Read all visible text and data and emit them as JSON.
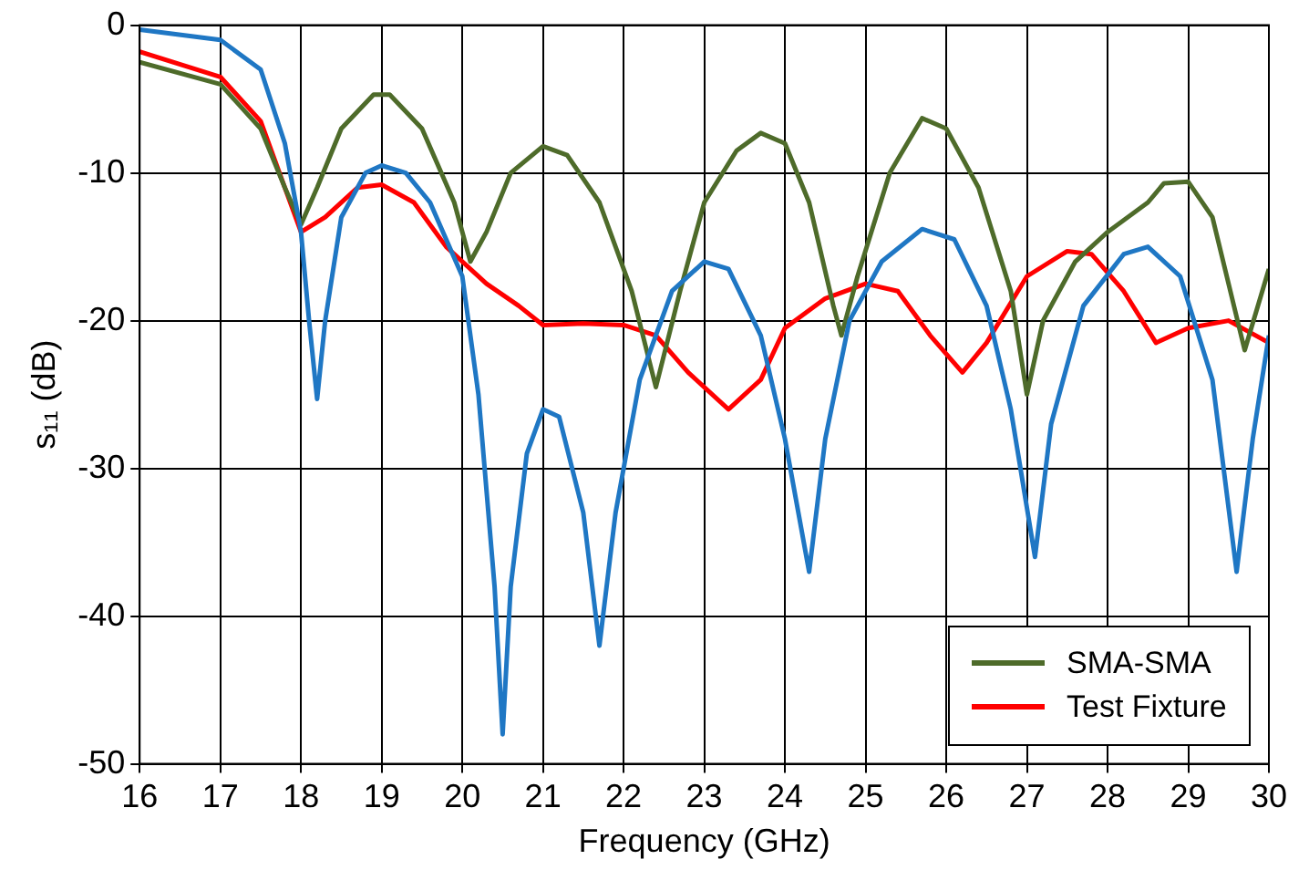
{
  "chart_data": {
    "type": "line",
    "xlabel": "Frequency (GHz)",
    "ylabel": "s₁₁ (dB)",
    "xlim": [
      16,
      30
    ],
    "xticks": [
      16,
      17,
      18,
      19,
      20,
      21,
      22,
      23,
      24,
      25,
      26,
      27,
      28,
      29,
      30
    ],
    "ylim": [
      -50,
      0
    ],
    "yticks": [
      -50,
      -40,
      -30,
      -20,
      -10,
      0
    ],
    "grid": true,
    "legend": "bottom right",
    "marker": "none",
    "line_style": "solid",
    "series": [
      {
        "color": "#1f77c4",
        "x": [
          16,
          17,
          17.5,
          17.8,
          18.0,
          18.1,
          18.2,
          18.3,
          18.5,
          18.8,
          19.0,
          19.3,
          19.6,
          20.0,
          20.2,
          20.4,
          20.5,
          20.6,
          20.8,
          21.0,
          21.2,
          21.5,
          21.7,
          21.9,
          22.2,
          22.6,
          23.0,
          23.3,
          23.7,
          24.0,
          24.3,
          24.5,
          24.8,
          25.2,
          25.7,
          26.1,
          26.5,
          26.8,
          27.1,
          27.3,
          27.7,
          28.2,
          28.5,
          28.9,
          29.3,
          29.6,
          29.8,
          30
        ],
        "values": [
          -0.3,
          -1,
          -3,
          -8,
          -14,
          -20,
          -25.3,
          -20,
          -13,
          -10,
          -9.5,
          -10,
          -12,
          -17,
          -25,
          -38,
          -48,
          -38,
          -29,
          -26,
          -26.5,
          -33,
          -42,
          -33,
          -24,
          -18,
          -16,
          -16.5,
          -21,
          -28,
          -37,
          -28,
          -20,
          -16,
          -13.8,
          -14.5,
          -19,
          -26,
          -36,
          -27,
          -19,
          -15.5,
          -15,
          -17,
          -24,
          -37,
          -28,
          -21
        ]
      },
      {
        "name": "SMA-SMA",
        "color": "#4e6b2a",
        "x": [
          16,
          17,
          17.5,
          17.8,
          18.0,
          18.2,
          18.5,
          18.9,
          19.1,
          19.5,
          19.9,
          20.1,
          20.3,
          20.6,
          21.0,
          21.3,
          21.7,
          22.1,
          22.4,
          22.7,
          23.0,
          23.4,
          23.7,
          24.0,
          24.3,
          24.6,
          24.7,
          24.9,
          25.3,
          25.7,
          26.0,
          26.4,
          26.8,
          27.0,
          27.2,
          27.6,
          28.0,
          28.5,
          28.7,
          29.0,
          29.3,
          29.7,
          30
        ],
        "values": [
          -2.5,
          -4,
          -7,
          -11,
          -13.5,
          -11,
          -7,
          -4.7,
          -4.7,
          -7,
          -12,
          -16,
          -14,
          -10,
          -8.2,
          -8.8,
          -12,
          -18,
          -24.5,
          -18,
          -12,
          -8.5,
          -7.3,
          -8,
          -12,
          -19,
          -21,
          -17,
          -10,
          -6.3,
          -7,
          -11,
          -18,
          -25,
          -20,
          -16,
          -14,
          -12,
          -10.7,
          -10.6,
          -13,
          -22,
          -16.5
        ]
      },
      {
        "name": "Test Fixture",
        "color": "#ff0000",
        "x": [
          16,
          17,
          17.5,
          17.8,
          18.0,
          18.3,
          18.7,
          19.0,
          19.4,
          19.8,
          20.3,
          20.7,
          21.0,
          21.5,
          22.0,
          22.4,
          22.8,
          23.3,
          23.7,
          24.0,
          24.5,
          25.0,
          25.4,
          25.8,
          26.2,
          26.5,
          27.0,
          27.5,
          27.8,
          28.2,
          28.6,
          29.0,
          29.5,
          30
        ],
        "values": [
          -1.8,
          -3.5,
          -6.5,
          -11,
          -14,
          -13,
          -11,
          -10.8,
          -12,
          -15,
          -17.5,
          -19,
          -20.3,
          -20.2,
          -20.3,
          -21,
          -23.5,
          -26,
          -24,
          -20.5,
          -18.5,
          -17.5,
          -18,
          -21,
          -23.5,
          -21.5,
          -17,
          -15.3,
          -15.5,
          -18,
          -21.5,
          -20.5,
          -20,
          -21.5
        ]
      }
    ]
  }
}
